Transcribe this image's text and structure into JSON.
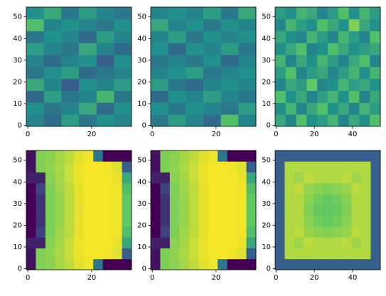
{
  "chart_data": [
    {
      "type": "heatmap",
      "colormap": "viridis",
      "xlim": [
        -0.5,
        32.5
      ],
      "ylim": [
        -0.5,
        54.5
      ],
      "xticks": [
        0,
        20
      ],
      "yticks": [
        0,
        10,
        20,
        30,
        40,
        50
      ],
      "values": [
        [
          0.45,
          0.35,
          0.55,
          0.4,
          0.5,
          0.45
        ],
        [
          0.5,
          0.4,
          0.45,
          0.6,
          0.35,
          0.5
        ],
        [
          0.35,
          0.55,
          0.4,
          0.45,
          0.65,
          0.4
        ],
        [
          0.6,
          0.45,
          0.3,
          0.5,
          0.45,
          0.55
        ],
        [
          0.4,
          0.5,
          0.55,
          0.35,
          0.4,
          0.45
        ],
        [
          0.45,
          0.35,
          0.45,
          0.5,
          0.3,
          0.5
        ],
        [
          0.55,
          0.45,
          0.4,
          0.6,
          0.45,
          0.35
        ],
        [
          0.4,
          0.5,
          0.45,
          0.35,
          0.55,
          0.45
        ],
        [
          0.7,
          0.45,
          0.5,
          0.45,
          0.4,
          0.5
        ],
        [
          0.5,
          0.6,
          0.4,
          0.55,
          0.45,
          0.4
        ]
      ]
    },
    {
      "type": "heatmap",
      "colormap": "viridis",
      "xlim": [
        -0.5,
        32.5
      ],
      "ylim": [
        -0.5,
        54.5
      ],
      "xticks": [
        0,
        20
      ],
      "yticks": [
        0,
        10,
        20,
        30,
        40,
        50
      ],
      "values": [
        [
          0.4,
          0.55,
          0.45,
          0.35,
          0.7,
          0.45
        ],
        [
          0.5,
          0.4,
          0.5,
          0.45,
          0.4,
          0.55
        ],
        [
          0.35,
          0.5,
          0.45,
          0.55,
          0.45,
          0.4
        ],
        [
          0.55,
          0.4,
          0.35,
          0.45,
          0.5,
          0.45
        ],
        [
          0.45,
          0.5,
          0.55,
          0.4,
          0.45,
          0.5
        ],
        [
          0.4,
          0.45,
          0.4,
          0.5,
          0.35,
          0.45
        ],
        [
          0.5,
          0.35,
          0.5,
          0.45,
          0.55,
          0.4
        ],
        [
          0.45,
          0.55,
          0.4,
          0.5,
          0.45,
          0.5
        ],
        [
          0.6,
          0.45,
          0.5,
          0.4,
          0.5,
          0.45
        ],
        [
          0.45,
          0.5,
          0.45,
          0.55,
          0.4,
          0.6
        ]
      ]
    },
    {
      "type": "heatmap",
      "colormap": "viridis",
      "xlim": [
        -0.5,
        54.5
      ],
      "ylim": [
        -0.5,
        54.5
      ],
      "xticks": [
        0,
        20,
        40
      ],
      "yticks": [
        0,
        10,
        20,
        30,
        40,
        50
      ],
      "values": [
        [
          0.6,
          0.45,
          0.7,
          0.5,
          0.55,
          0.65,
          0.45,
          0.6,
          0.5,
          0.7
        ],
        [
          0.5,
          0.65,
          0.45,
          0.6,
          0.7,
          0.5,
          0.6,
          0.45,
          0.65,
          0.55
        ],
        [
          0.7,
          0.5,
          0.6,
          0.45,
          0.55,
          0.65,
          0.5,
          0.7,
          0.45,
          0.6
        ],
        [
          0.45,
          0.6,
          0.55,
          0.75,
          0.45,
          0.5,
          0.65,
          0.55,
          0.6,
          0.5
        ],
        [
          0.55,
          0.7,
          0.45,
          0.55,
          0.6,
          0.45,
          0.55,
          0.65,
          0.5,
          0.65
        ],
        [
          0.65,
          0.45,
          0.6,
          0.5,
          0.65,
          0.55,
          0.45,
          0.6,
          0.7,
          0.45
        ],
        [
          0.5,
          0.6,
          0.7,
          0.45,
          0.5,
          0.7,
          0.6,
          0.5,
          0.55,
          0.6
        ],
        [
          0.6,
          0.5,
          0.45,
          0.65,
          0.55,
          0.45,
          0.65,
          0.55,
          0.45,
          0.7
        ],
        [
          0.45,
          0.65,
          0.55,
          0.5,
          0.7,
          0.6,
          0.5,
          0.8,
          0.6,
          0.5
        ],
        [
          0.55,
          0.5,
          0.65,
          0.6,
          0.45,
          0.55,
          0.7,
          0.5,
          0.65,
          0.55
        ]
      ]
    },
    {
      "type": "heatmap",
      "colormap": "viridis",
      "xlim": [
        -0.5,
        32.5
      ],
      "ylim": [
        -0.5,
        54.5
      ],
      "xticks": [
        0,
        20
      ],
      "yticks": [
        0,
        10,
        20,
        30,
        40,
        50
      ],
      "values": [
        [
          0.05,
          0.8,
          0.82,
          0.86,
          0.9,
          0.95,
          0.98,
          0.4,
          0.0,
          0.0,
          0.0
        ],
        [
          0.05,
          0.8,
          0.83,
          0.87,
          0.92,
          0.97,
          0.99,
          0.99,
          0.98,
          0.95,
          0.3
        ],
        [
          0.1,
          0.1,
          0.82,
          0.86,
          0.92,
          0.97,
          0.99,
          0.99,
          0.99,
          0.97,
          0.6
        ],
        [
          0.0,
          0.2,
          0.8,
          0.85,
          0.9,
          0.96,
          0.99,
          0.99,
          0.99,
          0.98,
          0.7
        ],
        [
          0.0,
          0.15,
          0.8,
          0.84,
          0.9,
          0.96,
          0.99,
          0.99,
          0.99,
          0.98,
          0.75
        ],
        [
          0.0,
          0.15,
          0.8,
          0.84,
          0.9,
          0.96,
          0.99,
          0.99,
          0.99,
          0.98,
          0.75
        ],
        [
          0.0,
          0.15,
          0.8,
          0.84,
          0.9,
          0.96,
          0.99,
          0.99,
          0.99,
          0.98,
          0.75
        ],
        [
          0.0,
          0.2,
          0.8,
          0.85,
          0.9,
          0.96,
          0.99,
          0.99,
          0.99,
          0.98,
          0.7
        ],
        [
          0.1,
          0.1,
          0.82,
          0.86,
          0.92,
          0.97,
          0.99,
          0.99,
          0.99,
          0.97,
          0.6
        ],
        [
          0.05,
          0.8,
          0.83,
          0.87,
          0.92,
          0.97,
          0.99,
          0.99,
          0.98,
          0.95,
          0.3
        ],
        [
          0.05,
          0.8,
          0.82,
          0.86,
          0.9,
          0.95,
          0.98,
          0.4,
          0.0,
          0.0,
          0.0
        ]
      ]
    },
    {
      "type": "heatmap",
      "colormap": "viridis",
      "xlim": [
        -0.5,
        32.5
      ],
      "ylim": [
        -0.5,
        54.5
      ],
      "xticks": [
        0,
        20
      ],
      "yticks": [
        0,
        10,
        20,
        30,
        40,
        50
      ],
      "values": [
        [
          0.05,
          0.8,
          0.82,
          0.86,
          0.9,
          0.95,
          0.98,
          0.4,
          0.0,
          0.0,
          0.0
        ],
        [
          0.05,
          0.8,
          0.83,
          0.87,
          0.92,
          0.97,
          0.99,
          0.99,
          0.98,
          0.95,
          0.3
        ],
        [
          0.1,
          0.1,
          0.82,
          0.86,
          0.92,
          0.97,
          0.99,
          0.99,
          0.99,
          0.97,
          0.6
        ],
        [
          0.0,
          0.2,
          0.8,
          0.85,
          0.9,
          0.96,
          0.99,
          0.99,
          0.99,
          0.98,
          0.7
        ],
        [
          0.0,
          0.15,
          0.8,
          0.84,
          0.9,
          0.96,
          0.99,
          0.99,
          0.99,
          0.98,
          0.75
        ],
        [
          0.0,
          0.15,
          0.8,
          0.84,
          0.9,
          0.96,
          0.99,
          0.99,
          0.99,
          0.98,
          0.75
        ],
        [
          0.0,
          0.15,
          0.8,
          0.84,
          0.9,
          0.96,
          0.99,
          0.99,
          0.99,
          0.98,
          0.75
        ],
        [
          0.0,
          0.2,
          0.8,
          0.85,
          0.9,
          0.96,
          0.99,
          0.99,
          0.99,
          0.98,
          0.7
        ],
        [
          0.1,
          0.1,
          0.82,
          0.86,
          0.92,
          0.97,
          0.99,
          0.99,
          0.99,
          0.97,
          0.6
        ],
        [
          0.05,
          0.8,
          0.83,
          0.87,
          0.92,
          0.97,
          0.99,
          0.99,
          0.98,
          0.95,
          0.3
        ],
        [
          0.05,
          0.8,
          0.82,
          0.86,
          0.9,
          0.95,
          0.98,
          0.4,
          0.0,
          0.0,
          0.0
        ]
      ]
    },
    {
      "type": "heatmap",
      "colormap": "viridis",
      "xlim": [
        -0.5,
        54.5
      ],
      "ylim": [
        -0.5,
        54.5
      ],
      "xticks": [
        0,
        20,
        40
      ],
      "yticks": [
        0,
        10,
        20,
        30,
        40,
        50
      ],
      "values": [
        [
          0.3,
          0.3,
          0.3,
          0.3,
          0.3,
          0.3,
          0.3,
          0.3,
          0.3,
          0.3,
          0.3
        ],
        [
          0.3,
          0.88,
          0.88,
          0.88,
          0.88,
          0.88,
          0.88,
          0.88,
          0.88,
          0.88,
          0.3
        ],
        [
          0.3,
          0.88,
          0.85,
          0.9,
          0.88,
          0.88,
          0.88,
          0.9,
          0.85,
          0.88,
          0.3
        ],
        [
          0.3,
          0.88,
          0.9,
          0.84,
          0.82,
          0.8,
          0.82,
          0.84,
          0.9,
          0.88,
          0.3
        ],
        [
          0.3,
          0.88,
          0.88,
          0.82,
          0.78,
          0.76,
          0.78,
          0.82,
          0.88,
          0.88,
          0.3
        ],
        [
          0.3,
          0.88,
          0.88,
          0.8,
          0.76,
          0.74,
          0.76,
          0.8,
          0.88,
          0.88,
          0.3
        ],
        [
          0.3,
          0.88,
          0.88,
          0.82,
          0.78,
          0.76,
          0.78,
          0.82,
          0.88,
          0.88,
          0.3
        ],
        [
          0.3,
          0.88,
          0.9,
          0.84,
          0.82,
          0.8,
          0.82,
          0.84,
          0.9,
          0.88,
          0.3
        ],
        [
          0.3,
          0.88,
          0.85,
          0.9,
          0.88,
          0.88,
          0.88,
          0.9,
          0.85,
          0.88,
          0.3
        ],
        [
          0.3,
          0.88,
          0.88,
          0.88,
          0.88,
          0.88,
          0.88,
          0.88,
          0.88,
          0.88,
          0.3
        ],
        [
          0.3,
          0.3,
          0.3,
          0.3,
          0.3,
          0.3,
          0.3,
          0.3,
          0.3,
          0.3,
          0.3
        ]
      ]
    }
  ]
}
